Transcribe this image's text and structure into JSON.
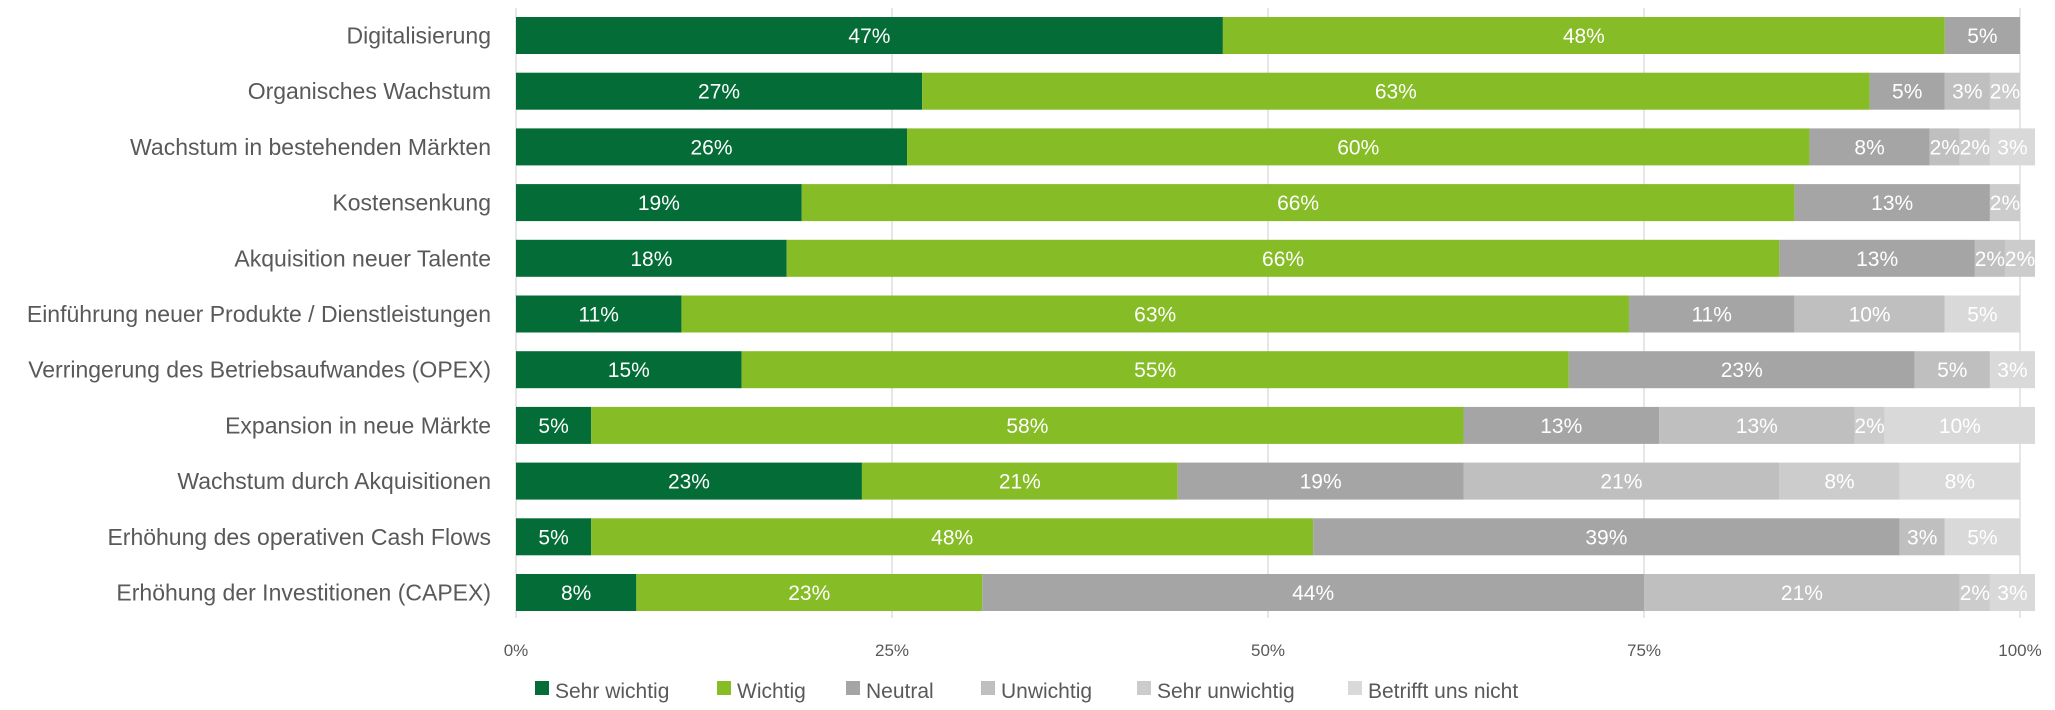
{
  "chart_data": {
    "type": "bar",
    "orientation": "horizontal",
    "stacked": "percent",
    "categories": [
      "Digitalisierung",
      "Organisches Wachstum",
      "Wachstum in bestehenden Märkten",
      "Kostensenkung",
      "Akquisition neuer Talente",
      "Einführung neuer Produkte / Dienstleistungen",
      "Verringerung des Betriebsaufwandes (OPEX)",
      "Expansion in neue Märkte",
      "Wachstum durch Akquisitionen",
      "Erhöhung des operativen Cash Flows",
      "Erhöhung der Investitionen (CAPEX)"
    ],
    "series": [
      {
        "name": "Sehr wichtig",
        "color": "#046C36",
        "values": [
          47,
          27,
          26,
          19,
          18,
          11,
          15,
          5,
          23,
          5,
          8
        ]
      },
      {
        "name": "Wichtig",
        "color": "#86BC25",
        "values": [
          48,
          63,
          60,
          66,
          66,
          63,
          55,
          58,
          21,
          48,
          23
        ]
      },
      {
        "name": "Neutral",
        "color": "#A5A5A5",
        "values": [
          5,
          5,
          8,
          13,
          13,
          11,
          23,
          13,
          19,
          39,
          44
        ]
      },
      {
        "name": "Unwichtig",
        "color": "#BFBFBF",
        "values": [
          0,
          3,
          2,
          0,
          2,
          10,
          5,
          13,
          21,
          3,
          21
        ]
      },
      {
        "name": "Sehr unwichtig",
        "color": "#CCCCCC",
        "values": [
          0,
          2,
          2,
          2,
          2,
          0,
          0,
          2,
          8,
          0,
          2
        ]
      },
      {
        "name": "Betrifft uns nicht",
        "color": "#D9D9D9",
        "values": [
          0,
          0,
          3,
          0,
          0,
          5,
          3,
          10,
          8,
          5,
          3
        ]
      }
    ],
    "x_ticks": [
      "0%",
      "25%",
      "50%",
      "75%",
      "100%"
    ],
    "xlim": [
      0,
      100
    ],
    "grid": "vertical",
    "legend_position": "bottom"
  }
}
